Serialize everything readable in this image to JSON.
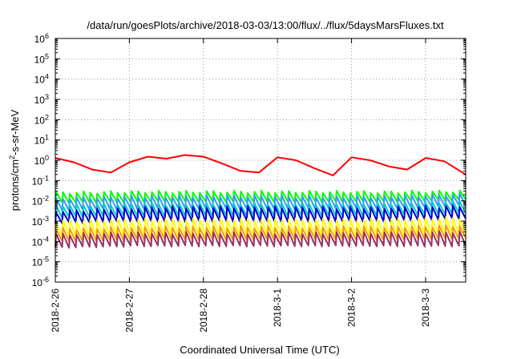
{
  "chart_data": {
    "type": "line",
    "title": "/data/run/goesPlots/archive/2018-03-03/13:00/flux/../flux/5daysMarsFluxes.txt",
    "xlabel": "Coordinated Universal Time (UTC)",
    "ylabel": {
      "prefix": "protons/cm",
      "sup": "2",
      "suffix": "-s-sr-MeV"
    },
    "yscale": "log",
    "ylim": [
      1e-06,
      1000000.0
    ],
    "y_ticks": [
      {
        "value": 1e-06,
        "base": "10",
        "exp": "-6"
      },
      {
        "value": 1e-05,
        "base": "10",
        "exp": "-5"
      },
      {
        "value": 0.0001,
        "base": "10",
        "exp": "-4"
      },
      {
        "value": 0.001,
        "base": "10",
        "exp": "-3"
      },
      {
        "value": 0.01,
        "base": "10",
        "exp": "-2"
      },
      {
        "value": 0.1,
        "base": "10",
        "exp": "-1"
      },
      {
        "value": 1,
        "base": "10",
        "exp": "0"
      },
      {
        "value": 10,
        "base": "10",
        "exp": "1"
      },
      {
        "value": 100,
        "base": "10",
        "exp": "2"
      },
      {
        "value": 1000,
        "base": "10",
        "exp": "3"
      },
      {
        "value": 10000,
        "base": "10",
        "exp": "4"
      },
      {
        "value": 100000,
        "base": "10",
        "exp": "5"
      },
      {
        "value": 1000000,
        "base": "10",
        "exp": "6"
      }
    ],
    "x_ticks": [
      "2018-2-26",
      "2018-2-27",
      "2018-2-28",
      "2018-3-1",
      "2018-3-2",
      "2018-3-3"
    ],
    "xlim": [
      "2018-02-26T00:00",
      "2018-03-03T13:00"
    ],
    "grid": true,
    "legend": "none",
    "series": [
      {
        "color": "#ff0000",
        "x": [
          "2018-02-26T00:00",
          "2018-02-26T06:00",
          "2018-02-26T12:00",
          "2018-02-26T18:00",
          "2018-02-27T00:00",
          "2018-02-27T06:00",
          "2018-02-27T12:00",
          "2018-02-27T18:00",
          "2018-02-28T00:00",
          "2018-02-28T06:00",
          "2018-02-28T12:00",
          "2018-02-28T18:00",
          "2018-03-01T00:00",
          "2018-03-01T06:00",
          "2018-03-01T12:00",
          "2018-03-01T18:00",
          "2018-03-02T00:00",
          "2018-03-02T06:00",
          "2018-03-02T12:00",
          "2018-03-02T18:00",
          "2018-03-03T00:00",
          "2018-03-03T06:00",
          "2018-03-03T13:00"
        ],
        "values": [
          1.3,
          0.8,
          0.35,
          0.25,
          0.8,
          1.5,
          1.2,
          1.8,
          1.5,
          0.7,
          0.3,
          0.25,
          1.4,
          1.0,
          0.4,
          0.18,
          1.4,
          1.0,
          0.5,
          0.35,
          1.3,
          0.9,
          0.2
        ]
      },
      {
        "color": "#00ff00",
        "sawtooth": true,
        "peaks": [
          0.025,
          0.028,
          0.028,
          0.028,
          0.027,
          0.03
        ],
        "troughs": [
          0.008,
          0.009,
          0.009,
          0.009,
          0.009,
          0.011
        ]
      },
      {
        "color": "#3399ff",
        "sawtooth": true,
        "peaks": [
          0.013,
          0.016,
          0.017,
          0.016,
          0.016,
          0.02
        ],
        "troughs": [
          0.0035,
          0.004,
          0.004,
          0.004,
          0.004,
          0.006
        ]
      },
      {
        "color": "#00cccc",
        "sawtooth": true,
        "peaks": [
          0.006,
          0.007,
          0.007,
          0.007,
          0.007,
          0.009
        ],
        "troughs": [
          0.0015,
          0.0018,
          0.0018,
          0.0018,
          0.0018,
          0.0025
        ]
      },
      {
        "color": "#0000cc",
        "sawtooth": true,
        "peaks": [
          0.003,
          0.0045,
          0.005,
          0.0045,
          0.0045,
          0.0055
        ],
        "troughs": [
          0.0008,
          0.001,
          0.001,
          0.001,
          0.001,
          0.0014
        ]
      },
      {
        "color": "#ffff00",
        "sawtooth": true,
        "peaks": [
          0.001,
          0.0012,
          0.0012,
          0.0012,
          0.0012,
          0.0015
        ],
        "troughs": [
          0.00018,
          0.0002,
          0.0002,
          0.0002,
          0.0002,
          0.00025
        ]
      },
      {
        "color": "#ff9900",
        "sawtooth": true,
        "peaks": [
          0.0004,
          0.0005,
          0.0005,
          0.0005,
          0.0005,
          0.0006
        ],
        "troughs": [
          0.0001,
          0.00012,
          0.00012,
          0.00012,
          0.00012,
          0.00014
        ]
      },
      {
        "color": "#993366",
        "sawtooth": true,
        "peaks": [
          0.00022,
          0.00026,
          0.00026,
          0.00026,
          0.00026,
          0.0003
        ],
        "troughs": [
          5e-05,
          6e-05,
          6e-05,
          6e-05,
          6e-05,
          6e-05
        ]
      }
    ]
  }
}
